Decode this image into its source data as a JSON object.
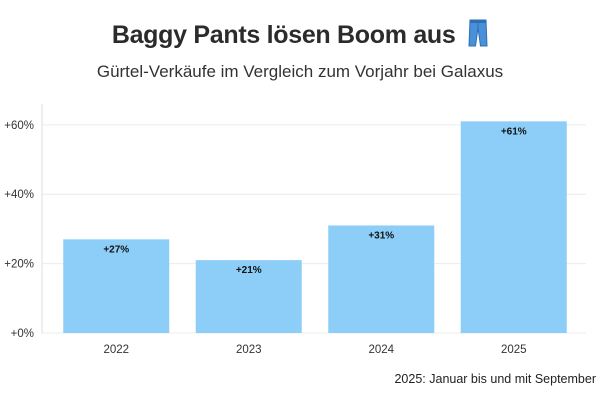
{
  "header": {
    "title": "Baggy Pants lösen Boom aus",
    "title_icon": "jeans-icon",
    "subtitle": "Gürtel-Verkäufe im Vergleich zum Vorjahr bei Galaxus"
  },
  "footnote": "2025: Januar bis und mit September",
  "chart_data": {
    "type": "bar",
    "categories": [
      "2022",
      "2023",
      "2024",
      "2025"
    ],
    "values": [
      27,
      21,
      31,
      61
    ],
    "data_labels": [
      "+27%",
      "+21%",
      "+31%",
      "+61%"
    ],
    "y_ticks": [
      0,
      20,
      40,
      60
    ],
    "y_tick_labels": [
      "+0%",
      "+20%",
      "+40%",
      "+60%"
    ],
    "ylim": [
      0,
      66
    ],
    "xlabel": "",
    "ylabel": "",
    "grid": true,
    "bar_color": "#8dcef8",
    "icon_color": "#4a90d9"
  }
}
